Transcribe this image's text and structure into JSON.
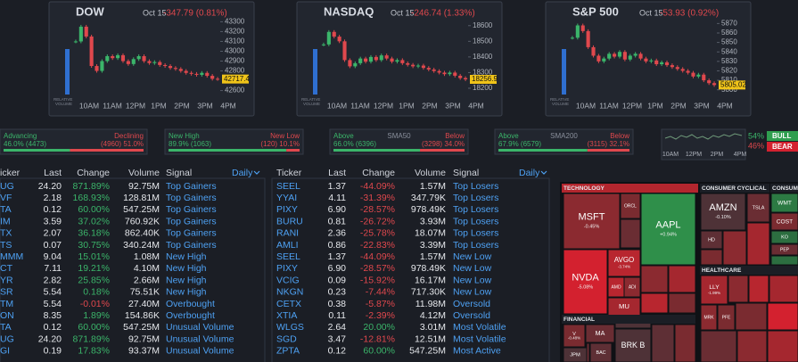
{
  "indices": [
    {
      "name": "DOW",
      "date": "Oct 15",
      "change": "-347.79 (0.81%)",
      "ylim": [
        42560,
        43340
      ],
      "yticks": [
        43300,
        43200,
        43100,
        43000,
        42900,
        42800,
        42600
      ],
      "last": {
        "value": 42717.4,
        "label": "42717.4"
      },
      "values": [
        43100,
        43250,
        43150,
        42850,
        42800,
        42900,
        42950,
        42930,
        42960,
        42900,
        42870,
        42920,
        42950,
        42900,
        42880,
        42890,
        42860,
        42850,
        42830,
        42820,
        42800,
        42780,
        42770,
        42760,
        42780,
        42750,
        42720,
        42717.4
      ],
      "volume_label": [
        "RELATIVE",
        "VOLUME"
      ],
      "xlabels": [
        "10AM",
        "11AM",
        "12PM",
        "1PM",
        "2PM",
        "3PM",
        "4PM"
      ]
    },
    {
      "name": "NASDAQ",
      "date": "Oct 15",
      "change": "-246.74 (1.33%)",
      "ylim": [
        18160,
        18650
      ],
      "yticks": [
        18600,
        18500,
        18400,
        18300,
        18200
      ],
      "last": {
        "value": 18256.9,
        "label": "18256.9"
      },
      "values": [
        18480,
        18560,
        18530,
        18500,
        18380,
        18340,
        18360,
        18390,
        18370,
        18400,
        18380,
        18410,
        18390,
        18370,
        18380,
        18360,
        18350,
        18340,
        18345,
        18330,
        18320,
        18310,
        18300,
        18290,
        18300,
        18280,
        18265,
        18256.9
      ],
      "volume_label": [
        "RELATIVE",
        "VOLUME"
      ],
      "xlabels": [
        "10AM",
        "11AM",
        "12PM",
        "1PM",
        "2PM",
        "3PM",
        "4PM"
      ]
    },
    {
      "name": "S&P 500",
      "date": "Oct 15",
      "change": "-53.93 (0.92%)",
      "ylim": [
        5795,
        5876
      ],
      "yticks": [
        5870,
        5860,
        5850,
        5840,
        5830,
        5820,
        5810,
        5800
      ],
      "last": {
        "value": 5805.02,
        "label": "5805.02"
      },
      "values": [
        5855,
        5868,
        5862,
        5845,
        5836,
        5830,
        5833,
        5838,
        5835,
        5840,
        5832,
        5836,
        5838,
        5833,
        5830,
        5831,
        5827,
        5829,
        5826,
        5824,
        5822,
        5820,
        5818,
        5814,
        5816,
        5810,
        5807,
        5805.02
      ],
      "volume_label": [
        "RELATIVE",
        "VOLUME"
      ],
      "xlabels": [
        "10AM",
        "11AM",
        "12PM",
        "1PM",
        "2PM",
        "3PM",
        "4PM"
      ]
    }
  ],
  "breadth": [
    {
      "left_title": "Advancing",
      "right_title": "Declining",
      "left": {
        "value": 46.0,
        "label": "46.0% (4473)"
      },
      "right": {
        "value": 51.0,
        "label": "(4960) 51.0%"
      }
    },
    {
      "left_title": "New High",
      "right_title": "New Low",
      "left": {
        "value": 89.9,
        "label": "89.9% (1063)"
      },
      "right": {
        "value": 10.1,
        "label": "(120) 10.1%"
      }
    },
    {
      "left_title": "Above",
      "center_title": "SMA50",
      "right_title": "Below",
      "left": {
        "value": 66.0,
        "label": "66.0% (6396)"
      },
      "right": {
        "value": 34.0,
        "label": "(3298) 34.0%"
      }
    },
    {
      "left_title": "Above",
      "center_title": "SMA200",
      "right_title": "Below",
      "left": {
        "value": 67.9,
        "label": "67.9% (6579)"
      },
      "right": {
        "value": 32.1,
        "label": "(3115) 32.1%"
      }
    }
  ],
  "sentiment": {
    "xlabels": [
      "10AM",
      "12PM",
      "2PM",
      "4PM"
    ],
    "bull": {
      "pct": "54%",
      "label": "BULL"
    },
    "bear": {
      "pct": "46%",
      "label": "BEAR"
    }
  },
  "tables": [
    {
      "headers": [
        "icker",
        "Last",
        "Change",
        "Volume",
        "Signal"
      ],
      "period": "Daily",
      "rows": [
        [
          "UG",
          "24.20",
          "871.89%",
          "92.75M",
          "Top Gainers"
        ],
        [
          "VF",
          "2.18",
          "168.93%",
          "128.81M",
          "Top Gainers"
        ],
        [
          "TA",
          "0.12",
          "60.00%",
          "547.25M",
          "Top Gainers"
        ],
        [
          "IM",
          "3.59",
          "37.02%",
          "760.92K",
          "Top Gainers"
        ],
        [
          "TX",
          "2.07",
          "36.18%",
          "862.40K",
          "Top Gainers"
        ],
        [
          "TS",
          "0.07",
          "30.75%",
          "340.24M",
          "Top Gainers"
        ],
        [
          "MMM",
          "9.04",
          "15.01%",
          "1.08M",
          "New High"
        ],
        [
          "CT",
          "7.11",
          "19.21%",
          "4.10M",
          "New High"
        ],
        [
          "YR",
          "2.82",
          "25.85%",
          "2.66M",
          "New High"
        ],
        [
          "SR",
          "5.54",
          "0.18%",
          "75.51K",
          "New High"
        ],
        [
          "TM",
          "5.54",
          "-0.01%",
          "27.40M",
          "Overbought"
        ],
        [
          "ON",
          "8.35",
          "1.89%",
          "154.86K",
          "Overbought"
        ],
        [
          "TA",
          "0.12",
          "60.00%",
          "547.25M",
          "Unusual Volume"
        ],
        [
          "UG",
          "24.20",
          "871.89%",
          "92.75M",
          "Unusual Volume"
        ],
        [
          "GI",
          "0.19",
          "17.83%",
          "93.37M",
          "Unusual Volume"
        ]
      ]
    },
    {
      "headers": [
        "Ticker",
        "Last",
        "Change",
        "Volume",
        "Signal"
      ],
      "period": "Daily",
      "rows": [
        [
          "SEEL",
          "1.37",
          "-44.09%",
          "1.57M",
          "Top Losers"
        ],
        [
          "YYAI",
          "4.11",
          "-31.39%",
          "347.79K",
          "Top Losers"
        ],
        [
          "PIXY",
          "6.90",
          "-28.57%",
          "978.49K",
          "Top Losers"
        ],
        [
          "BURU",
          "0.81",
          "-26.72%",
          "3.93M",
          "Top Losers"
        ],
        [
          "RANI",
          "2.36",
          "-25.78%",
          "18.07M",
          "Top Losers"
        ],
        [
          "AMLI",
          "0.86",
          "-22.83%",
          "3.39M",
          "Top Losers"
        ],
        [
          "SEEL",
          "1.37",
          "-44.09%",
          "1.57M",
          "New Low"
        ],
        [
          "PIXY",
          "6.90",
          "-28.57%",
          "978.49K",
          "New Low"
        ],
        [
          "VCIG",
          "0.09",
          "-15.92%",
          "16.17M",
          "New Low"
        ],
        [
          "NKGN",
          "0.23",
          "-7.44%",
          "717.30K",
          "New Low"
        ],
        [
          "CETX",
          "0.38",
          "-5.87%",
          "11.98M",
          "Oversold"
        ],
        [
          "XTIA",
          "0.11",
          "-2.39%",
          "4.12M",
          "Oversold"
        ],
        [
          "WLGS",
          "2.64",
          "20.00%",
          "3.01M",
          "Most Volatile"
        ],
        [
          "SGD",
          "3.47",
          "-12.81%",
          "12.51M",
          "Most Volatile"
        ],
        [
          "ZPTA",
          "0.12",
          "60.00%",
          "547.25M",
          "Most Active"
        ]
      ]
    }
  ],
  "heatmap": [
    {
      "sector": "TECHNOLOGY",
      "tiles": [
        {
          "ticker": "MSFT",
          "change": "-0.45%",
          "color": "#8b2a30"
        },
        {
          "ticker": "ORCL",
          "color": "#7a2b30"
        },
        {
          "ticker": "AAPL",
          "change": "+0.94%",
          "color": "#2f8f4a"
        },
        {
          "ticker": "AVGO",
          "change": "-3.74%",
          "color": "#b8262f"
        },
        {
          "ticker": "NVDA",
          "change": "-5.08%",
          "color": "#d3212f"
        },
        {
          "ticker": "AMD",
          "color": "#b8262f"
        },
        {
          "ticker": "ADI",
          "color": "#8b2a30"
        },
        {
          "ticker": "MU",
          "color": "#a5272f"
        }
      ]
    },
    {
      "sector": "CONSUMER CYCLICAL",
      "tiles": [
        {
          "ticker": "AMZN",
          "change": "-0.10%",
          "color": "#4e3237"
        },
        {
          "ticker": "TSLA",
          "color": "#6a2d33"
        },
        {
          "ticker": "HD",
          "color": "#5e2f35"
        }
      ]
    },
    {
      "sector": "CONSUME",
      "tiles": [
        {
          "ticker": "WMT",
          "color": "#2c7a43"
        },
        {
          "ticker": "COST",
          "color": "#7a2b30"
        },
        {
          "ticker": "KO",
          "color": "#2c6e40"
        },
        {
          "ticker": "PEP",
          "color": "#6a2d33"
        }
      ]
    },
    {
      "sector": "HEALTHCARE",
      "tiles": [
        {
          "ticker": "LLY",
          "change": "-1.99%",
          "color": "#a5272f"
        },
        {
          "ticker": "MRK",
          "color": "#8b2a30"
        },
        {
          "ticker": "PFE",
          "color": "#7a2b30"
        }
      ]
    },
    {
      "sector": "FINANCIAL",
      "tiles": [
        {
          "ticker": "V",
          "change": "-0.48%",
          "color": "#7a2b30"
        },
        {
          "ticker": "MA",
          "color": "#6a2d33"
        },
        {
          "ticker": "JPM",
          "color": "#4e3237"
        },
        {
          "ticker": "BAC",
          "color": "#5e2f35"
        },
        {
          "ticker": "BRK B",
          "color": "#4e3237"
        }
      ]
    }
  ]
}
